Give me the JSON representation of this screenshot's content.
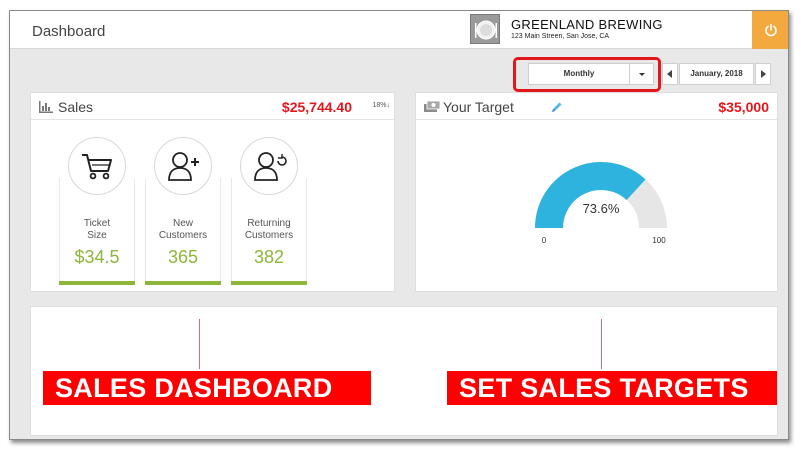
{
  "header": {
    "title": "Dashboard",
    "brand_name": "GREENLAND BREWING",
    "brand_address": "123 Main Streen, San Jose, CA",
    "logo_icon": "plate-cutlery-icon",
    "power_icon": "power-icon",
    "power_color": "#f4a93f"
  },
  "toolbar": {
    "period": "Monthly",
    "date": "January, 2018",
    "highlight_color": "#e3171b"
  },
  "sales": {
    "title": "Sales",
    "amount": "$25,744.40",
    "change": "18%",
    "change_icon": "arrow-down-icon",
    "icon": "bar-chart-icon",
    "metrics": [
      {
        "label_line1": "Ticket",
        "label_line2": "Size",
        "value": "$34.5",
        "icon": "shopping-cart-icon"
      },
      {
        "label_line1": "New",
        "label_line2": "Customers",
        "value": "365",
        "icon": "add-user-icon"
      },
      {
        "label_line1": "Returning",
        "label_line2": "Customers",
        "value": "382",
        "icon": "returning-user-icon"
      }
    ],
    "accent_color": "#8cb73a"
  },
  "target": {
    "title": "Your Target",
    "amount": "$35,000",
    "icon": "cash-icon",
    "edit_icon": "pencil-icon",
    "gauge": {
      "value_label": "73.6%",
      "value": 73.6,
      "min_label": "0",
      "max_label": "100",
      "min": 0,
      "max": 100,
      "fill_color": "#2db3dd",
      "track_color": "#e6e6e6"
    }
  },
  "banners": {
    "left": "SALES DASHBOARD",
    "right": "SET SALES TARGETS",
    "color": "#ff0000"
  }
}
